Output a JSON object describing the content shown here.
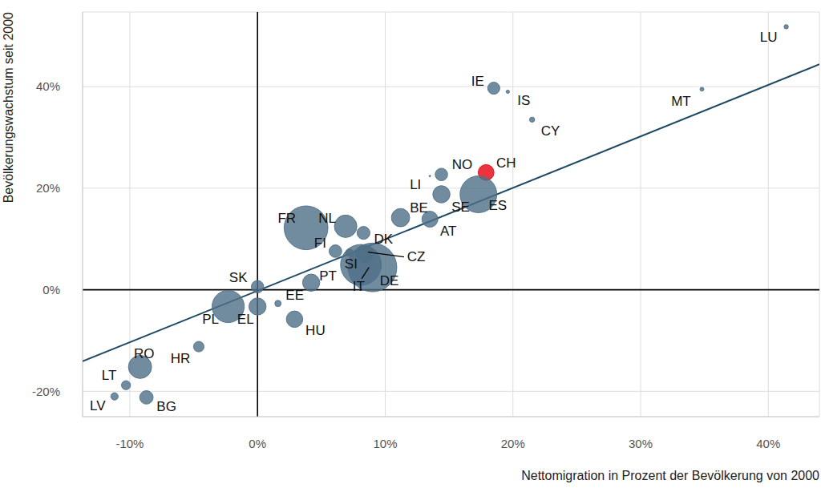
{
  "chart_data": {
    "type": "scatter",
    "x_label": "Nettomigration in Prozent der Bevölkerung von 2000",
    "y_label": "Bevölkerungswachstum seit 2000",
    "marker": "circle",
    "grid": true,
    "points": {
      "labels": [
        "LU",
        "IE",
        "IS",
        "CY",
        "MT",
        "NO",
        "CH",
        "LI",
        "SE",
        "ES",
        "BE",
        "AT",
        "FR",
        "NL",
        "DK",
        "FI",
        "SI",
        "CZ",
        "IT",
        "DE",
        "PT",
        "SK",
        "EE",
        "EL",
        "PL",
        "HU",
        "HR",
        "RO",
        "LT",
        "LV",
        "BG"
      ],
      "x": [
        41.4,
        18.5,
        19.6,
        21.5,
        34.8,
        14.4,
        17.9,
        13.5,
        14.4,
        17.3,
        11.2,
        13.5,
        3.8,
        6.9,
        8.3,
        6.1,
        7.2,
        8.4,
        8.1,
        9.0,
        4.2,
        0.0,
        1.6,
        0.0,
        -2.3,
        2.9,
        -4.6,
        -9.2,
        -10.3,
        -11.2,
        -8.7
      ],
      "y": [
        51.8,
        39.7,
        39.0,
        33.5,
        39.5,
        22.7,
        23.1,
        22.4,
        18.8,
        18.8,
        14.2,
        13.9,
        12.2,
        12.5,
        11.2,
        7.6,
        7.3,
        7.1,
        4.9,
        4.4,
        1.4,
        0.6,
        -2.7,
        -3.3,
        -3.3,
        -5.8,
        -11.2,
        -15.2,
        -18.8,
        -21.0,
        -21.2
      ],
      "size": [
        0.66,
        5.2,
        0.39,
        0.93,
        0.54,
        5.5,
        8.8,
        0.04,
        10.5,
        48,
        11.8,
        9.1,
        68,
        17.9,
        5.9,
        5.6,
        2.1,
        10.9,
        59,
        84,
        10.4,
        5.4,
        1.4,
        10.4,
        36.7,
        9.6,
        3.9,
        19,
        2.9,
        1.9,
        6.4
      ],
      "colors": [
        "#4f6f87",
        "#4f6f87",
        "#4f6f87",
        "#4f6f87",
        "#4f6f87",
        "#4f6f87",
        "#e8000d",
        "#4f6f87",
        "#4f6f87",
        "#4f6f87",
        "#4f6f87",
        "#4f6f87",
        "#4f6f87",
        "#4f6f87",
        "#4f6f87",
        "#4f6f87",
        "#4f6f87",
        "#4f6f87",
        "#4f6f87",
        "#4f6f87",
        "#4f6f87",
        "#4f6f87",
        "#4f6f87",
        "#4f6f87",
        "#4f6f87",
        "#4f6f87",
        "#4f6f87",
        "#4f6f87",
        "#4f6f87",
        "#4f6f87",
        "#4f6f87"
      ]
    },
    "trend_line": {
      "x": [
        -13.7,
        44
      ],
      "y": [
        -14.1,
        44.4
      ],
      "color": "#1f4a66"
    },
    "reference_lines": {
      "x": 0,
      "y": 0,
      "color": "#000000"
    },
    "xlim": [
      -13.7,
      44
    ],
    "ylim": [
      -25,
      54.7
    ],
    "xticks": [
      {
        "value": -10,
        "label": "-10%"
      },
      {
        "value": 0,
        "label": "0%"
      },
      {
        "value": 10,
        "label": "10%"
      },
      {
        "value": 20,
        "label": "20%"
      },
      {
        "value": 30,
        "label": "30%"
      },
      {
        "value": 40,
        "label": "40%"
      }
    ],
    "yticks": [
      {
        "value": -20,
        "label": "-20%"
      },
      {
        "value": 0,
        "label": "0%"
      },
      {
        "value": 20,
        "label": "20%"
      },
      {
        "value": 40,
        "label": "40%"
      }
    ]
  }
}
